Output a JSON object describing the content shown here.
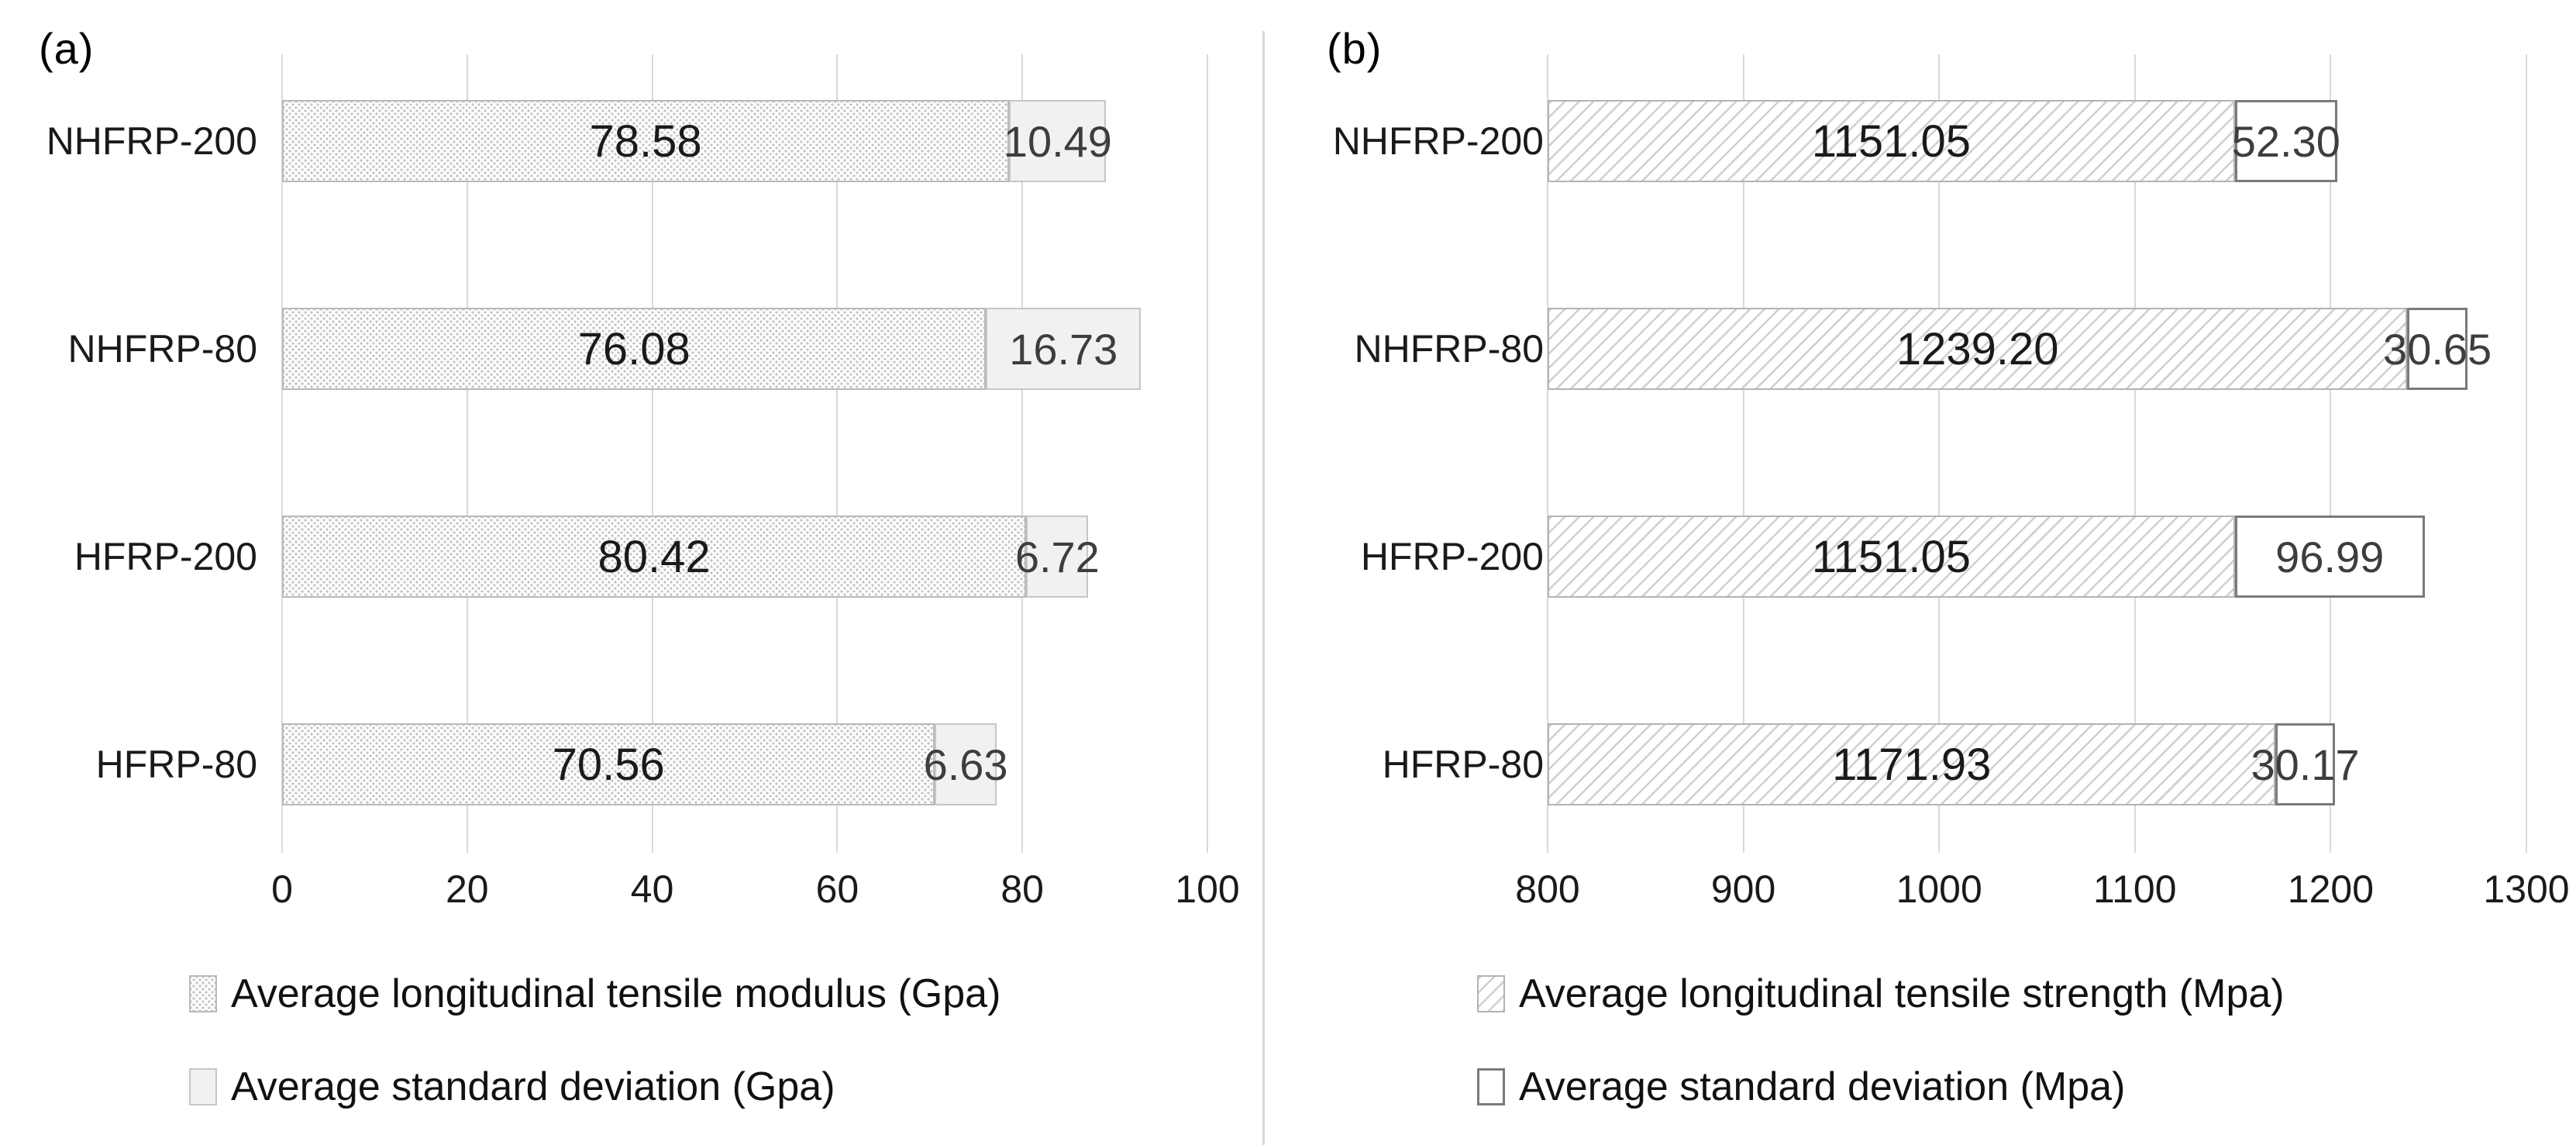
{
  "page": {
    "background": "#ffffff",
    "divider_color": "#d9d9d9"
  },
  "colors": {
    "gridline": "#d9d9d9",
    "main_value_text": "#1a1a1a",
    "std_value_text": "#3d3d3d",
    "axis_text": "#1a1a1a",
    "legend_text": "#111111",
    "dots_pattern": "#c4c4c4",
    "hatch_pattern": "#cfcfcf",
    "light_fill": "#f1f1f1",
    "outline_box_border": "#7a7a7a"
  },
  "chart_data": [
    {
      "type": "bar",
      "orientation": "horizontal",
      "stacked": true,
      "panel_label": "(a)",
      "title": "",
      "xlabel": "",
      "ylabel": "",
      "categories": [
        "NHFRP-200",
        "NHFRP-80",
        "HFRP-200",
        "HFRP-80"
      ],
      "series": [
        {
          "name": "Average longitudinal tensile modulus (Gpa)",
          "pattern": "dots",
          "values": [
            78.58,
            76.08,
            80.42,
            70.56
          ]
        },
        {
          "name": "Average standard deviation (Gpa)",
          "pattern": "solid-light",
          "values": [
            10.49,
            16.73,
            6.72,
            6.63
          ]
        }
      ],
      "value_decimals": 2,
      "xlim": [
        0,
        100
      ],
      "xticks": [
        0,
        20,
        40,
        60,
        80,
        100
      ],
      "grid": "vertical",
      "legend_position": "bottom-left"
    },
    {
      "type": "bar",
      "orientation": "horizontal",
      "stacked": true,
      "panel_label": "(b)",
      "title": "",
      "xlabel": "",
      "ylabel": "",
      "categories": [
        "NHFRP-200",
        "NHFRP-80",
        "HFRP-200",
        "HFRP-80"
      ],
      "series": [
        {
          "name": "Average longitudinal tensile strength (Mpa)",
          "pattern": "hatch",
          "values": [
            1151.05,
            1239.2,
            1151.05,
            1171.93
          ]
        },
        {
          "name": "Average standard deviation (Mpa)",
          "pattern": "outline-white",
          "values": [
            52.3,
            30.65,
            96.99,
            30.17
          ]
        }
      ],
      "value_decimals": 2,
      "xlim": [
        800,
        1300
      ],
      "xticks": [
        800,
        900,
        1000,
        1100,
        1200,
        1300
      ],
      "grid": "vertical",
      "legend_position": "bottom-left"
    }
  ]
}
